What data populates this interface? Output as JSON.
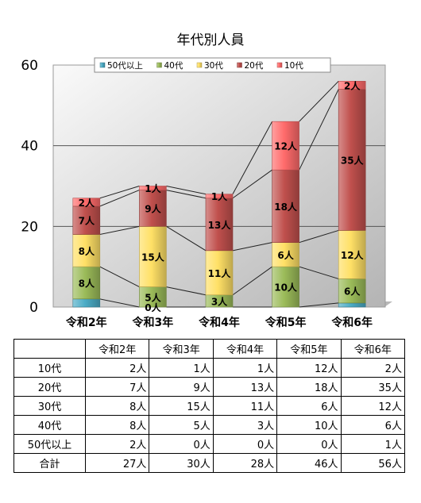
{
  "chart_data": {
    "type": "bar",
    "stacked": true,
    "title": "年代別人員",
    "categories": [
      "令和2年",
      "令和3年",
      "令和4年",
      "令和5年",
      "令和6年"
    ],
    "series": [
      {
        "name": "50代以上",
        "color": "#4bacc6",
        "values": [
          2,
          0,
          0,
          0,
          1
        ],
        "labels": [
          "",
          "0人",
          "",
          "",
          ""
        ]
      },
      {
        "name": "40代",
        "color": "#9bbb59",
        "values": [
          8,
          5,
          3,
          10,
          6
        ],
        "labels": [
          "8人",
          "5人",
          "3人",
          "10人",
          "6人"
        ]
      },
      {
        "name": "30代",
        "color": "#ffe066",
        "values": [
          8,
          15,
          11,
          6,
          12
        ],
        "labels": [
          "8人",
          "15人",
          "11人",
          "6人",
          "12人"
        ]
      },
      {
        "name": "20代",
        "color": "#c0504d",
        "values": [
          7,
          9,
          13,
          18,
          35
        ],
        "labels": [
          "7人",
          "9人",
          "13人",
          "18人",
          "35人"
        ]
      },
      {
        "name": "10代",
        "color": "#ff6b6b",
        "values": [
          2,
          1,
          1,
          12,
          2
        ],
        "labels": [
          "2人",
          "1人",
          "1人",
          "12人",
          "2人"
        ]
      }
    ],
    "ylim": [
      0,
      60
    ],
    "yticks": [
      "0",
      "20",
      "40",
      "60"
    ],
    "grid": true,
    "legend": "top"
  },
  "table": {
    "header": [
      "",
      "令和2年",
      "令和3年",
      "令和4年",
      "令和5年",
      "令和6年"
    ],
    "rows": [
      {
        "label": "10代",
        "values": [
          "2人",
          "1人",
          "1人",
          "12人",
          "2人"
        ]
      },
      {
        "label": "20代",
        "values": [
          "7人",
          "9人",
          "13人",
          "18人",
          "35人"
        ]
      },
      {
        "label": "30代",
        "values": [
          "8人",
          "15人",
          "11人",
          "6人",
          "12人"
        ]
      },
      {
        "label": "40代",
        "values": [
          "8人",
          "5人",
          "3人",
          "10人",
          "6人"
        ]
      },
      {
        "label": "50代以上",
        "values": [
          "2人",
          "0人",
          "0人",
          "0人",
          "1人"
        ]
      },
      {
        "label": "合計",
        "values": [
          "27人",
          "30人",
          "28人",
          "46人",
          "56人"
        ]
      }
    ]
  }
}
